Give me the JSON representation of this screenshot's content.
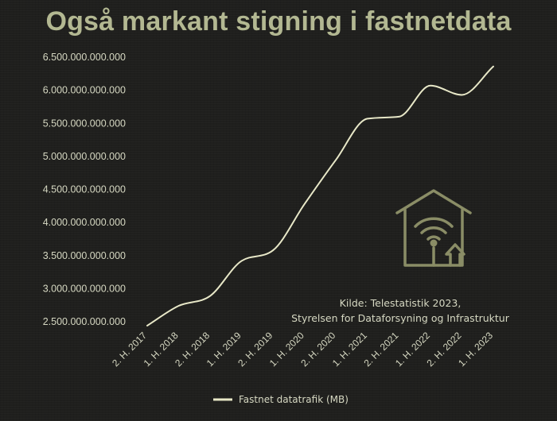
{
  "chart_data": {
    "type": "line",
    "title": "Også markant stigning i fastnetdata",
    "xlabel": "",
    "ylabel": "",
    "categories": [
      "2. H. 2017",
      "1. H. 2018",
      "2. H. 2018",
      "1. H. 2019",
      "2. H. 2019",
      "1. H. 2020",
      "2. H. 2020",
      "1. H. 2021",
      "2. H. 2021",
      "1. H. 2022",
      "2. H. 2022",
      "1. H. 2023"
    ],
    "series": [
      {
        "name": "Fastnet datatrafik (MB)",
        "color": "#e8e8c8",
        "values": [
          2440000000000,
          2740000000000,
          2890000000000,
          3420000000000,
          3580000000000,
          4280000000000,
          4950000000000,
          5570000000000,
          5600000000000,
          6070000000000,
          5930000000000,
          6360000000000
        ]
      }
    ],
    "y_ticks": [
      "2.500.000.000.000",
      "3.000.000.000.000",
      "3.500.000.000.000",
      "4.000.000.000.000",
      "4.500.000.000.000",
      "5.000.000.000.000",
      "5.500.000.000.000",
      "6.000.000.000.000",
      "6.500.000.000.000"
    ],
    "y_tick_values": [
      2500000000000,
      3000000000000,
      3500000000000,
      4000000000000,
      4500000000000,
      5000000000000,
      5500000000000,
      6000000000000,
      6500000000000
    ],
    "ylim": [
      2500000000000,
      6500000000000
    ],
    "grid": false,
    "legend_position": "bottom",
    "annotations": [
      "Kilde: Telestatistik 2023,",
      "Styrelsen for Dataforsyning og Infrastruktur"
    ],
    "icon": "house-wifi-icon",
    "accent_color": "#8a8d66",
    "title_color": "#b3b892",
    "background_color": "#1f1f1d"
  }
}
